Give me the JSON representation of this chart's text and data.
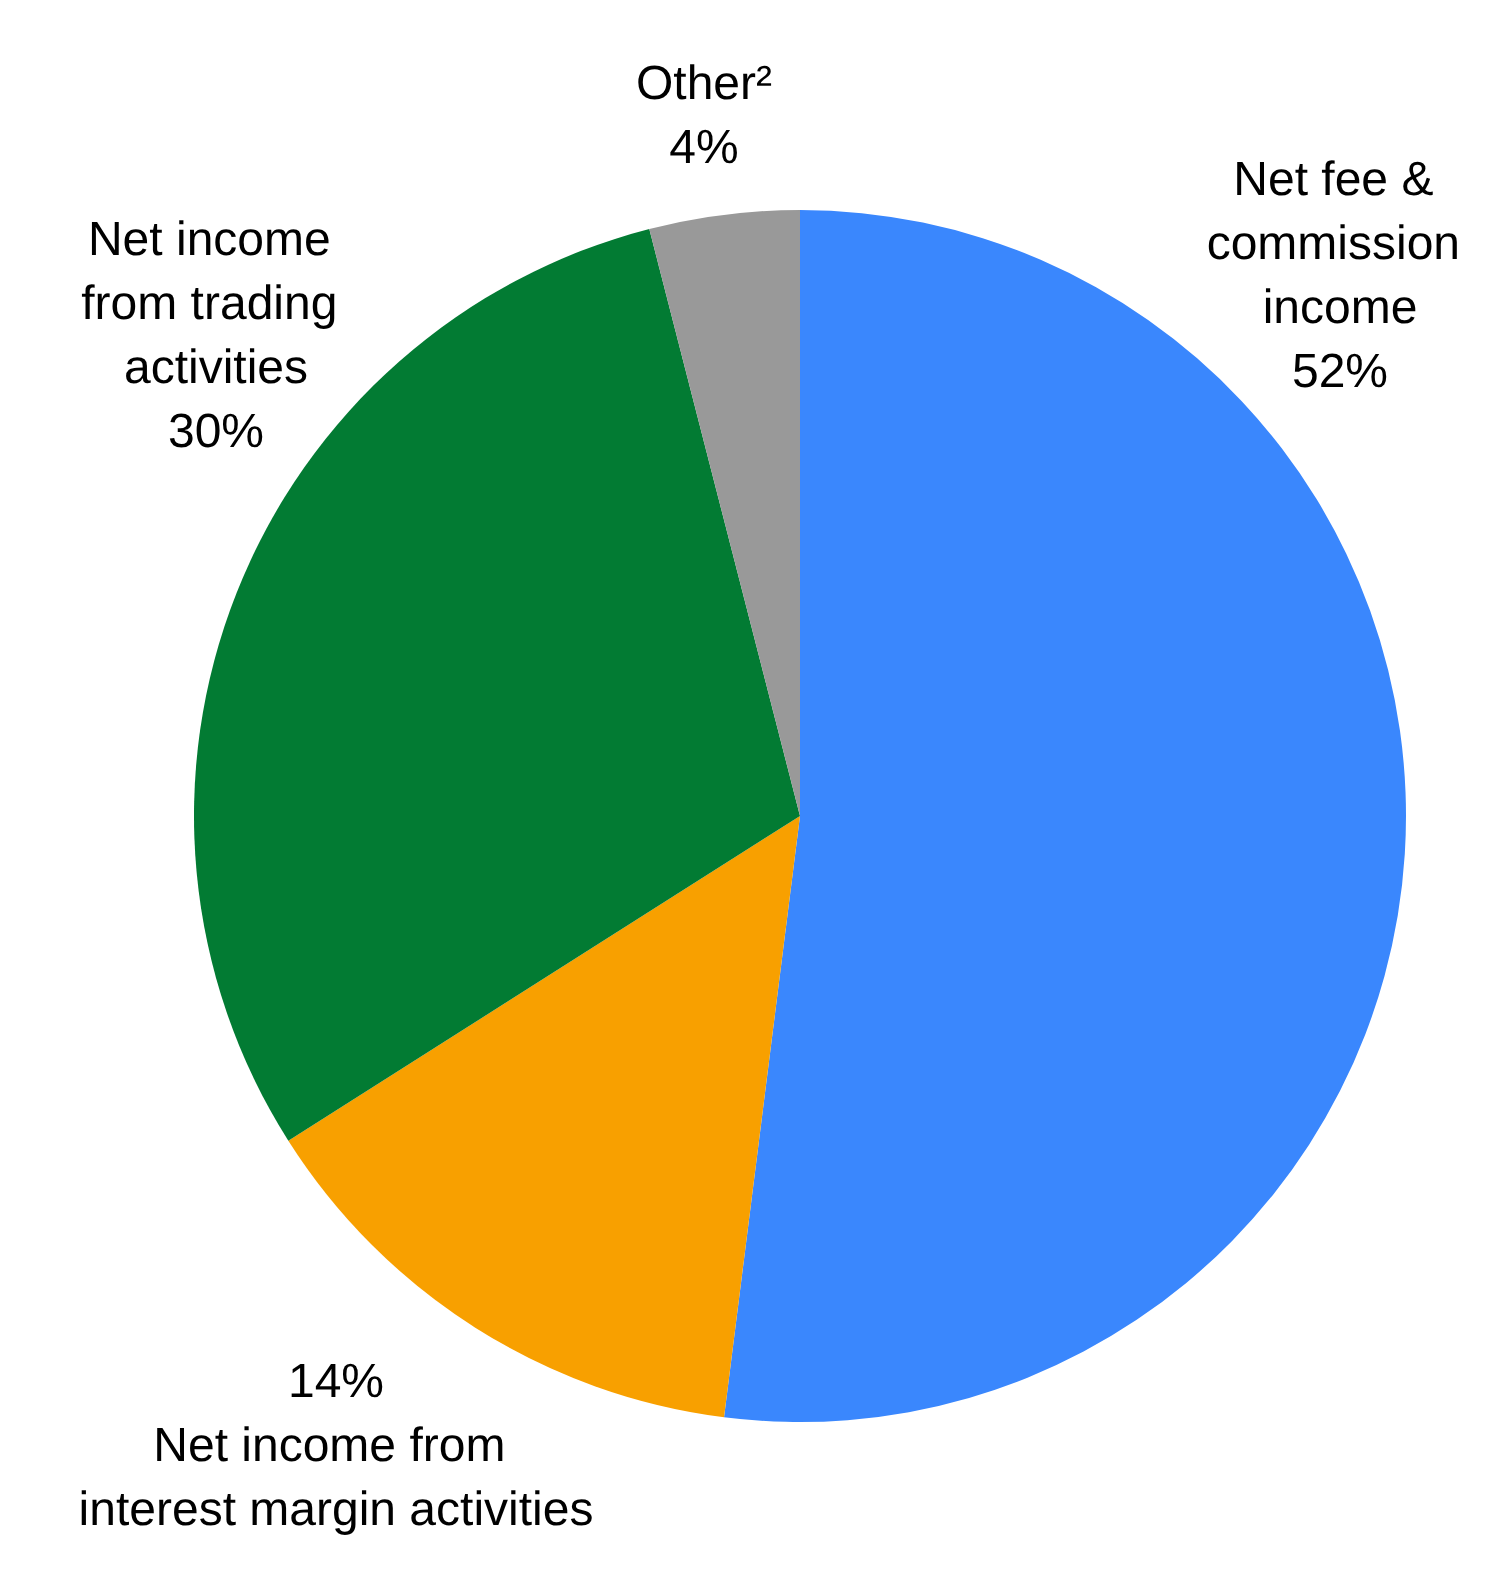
{
  "chart_data": {
    "type": "pie",
    "categories": [
      "Net fee & commission income",
      "Net income from interest margin activities",
      "Net income from trading activities",
      "Other²"
    ],
    "values": [
      52,
      14,
      30,
      4
    ],
    "value_labels": [
      "52%",
      "14%",
      "30%",
      "4%"
    ],
    "colors": [
      "#3a87fd",
      "#f8a000",
      "#027b33",
      "#999999"
    ],
    "legend": false
  }
}
